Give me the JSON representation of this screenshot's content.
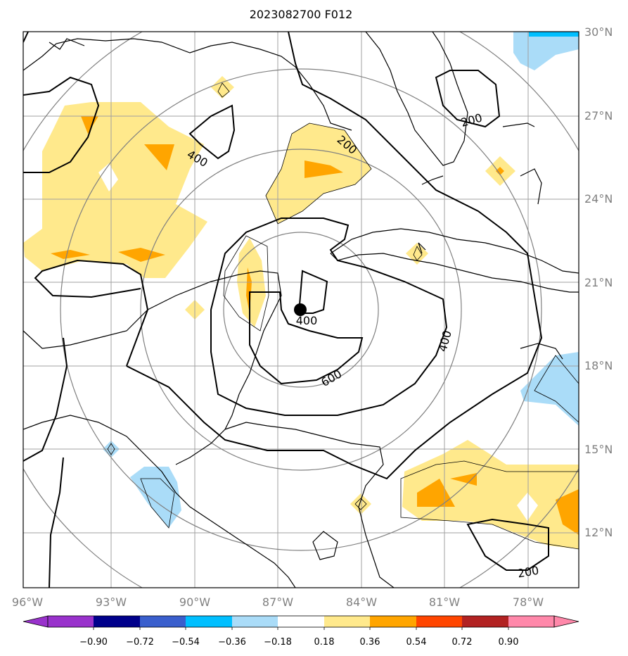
{
  "title": "2023082700 F012",
  "map": {
    "lon_labels": [
      "96°W",
      "93°W",
      "90°W",
      "87°W",
      "84°W",
      "81°W",
      "78°W"
    ],
    "lat_labels": [
      "30°N",
      "27°N",
      "24°N",
      "21°N",
      "18°N",
      "15°N",
      "12°N"
    ],
    "contour_labels": [
      "200",
      "400",
      "200",
      "400",
      "400",
      "600",
      "200"
    ],
    "center_marker": "storm-center",
    "colors": {
      "coast": "#000000",
      "grid": "#a0a0a0",
      "range_rings": "#808080",
      "pos_light": "#ffe98c",
      "pos_mid": "#ffa500",
      "neg_light": "#aadcf8",
      "neg_mid": "#00bfff"
    }
  },
  "colorbar": {
    "tick_labels": [
      "−0.90",
      "−0.72",
      "−0.54",
      "−0.36",
      "−0.18",
      "0.18",
      "0.36",
      "0.54",
      "0.72",
      "0.90"
    ],
    "colors": [
      "#9932cc",
      "#00008b",
      "#3a5fcd",
      "#00bfff",
      "#aadcf8",
      "#ffffff",
      "#ffe98c",
      "#ffa500",
      "#ff4500",
      "#b22222",
      "#ff88aa",
      "#ff88aa"
    ]
  }
}
